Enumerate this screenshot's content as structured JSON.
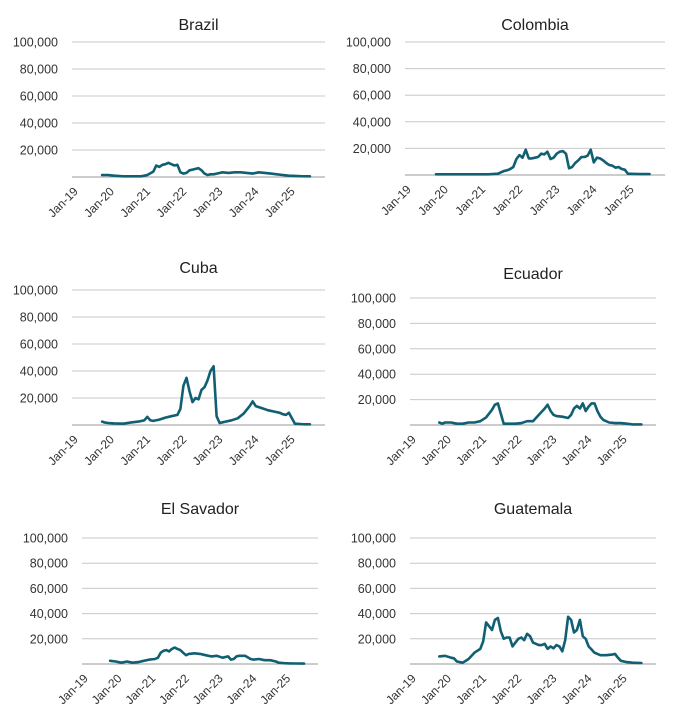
{
  "colors": {
    "line": "#115f73",
    "grid": "#c8c8c8"
  },
  "chart_data": [
    {
      "type": "line",
      "title": "Brazil",
      "ylim": [
        0,
        100000
      ],
      "yticks": [
        20000,
        40000,
        60000,
        80000,
        100000
      ],
      "ytick_labels": [
        "20,000",
        "40,000",
        "60,000",
        "80,000",
        "100,000"
      ],
      "xlim": [
        "2019-01",
        "2026-01"
      ],
      "xtick_labels": [
        "Jan-19",
        "Jan-20",
        "Jan-21",
        "Jan-22",
        "Jan-23",
        "Jan-24",
        "Jan-25"
      ],
      "grid": true,
      "series": [
        {
          "x": [
            "2019-11",
            "2020-01",
            "2020-03",
            "2020-06",
            "2020-09",
            "2020-12",
            "2021-02",
            "2021-04",
            "2021-05",
            "2021-06",
            "2021-07",
            "2021-08",
            "2021-09",
            "2021-10",
            "2021-11",
            "2021-12",
            "2022-01",
            "2022-02",
            "2022-03",
            "2022-04",
            "2022-05",
            "2022-06",
            "2022-07",
            "2022-08",
            "2022-09",
            "2022-10",
            "2022-11",
            "2022-12",
            "2023-01",
            "2023-03",
            "2023-05",
            "2023-07",
            "2023-09",
            "2023-11",
            "2024-01",
            "2024-03",
            "2024-05",
            "2024-07",
            "2024-09",
            "2024-11",
            "2025-01",
            "2025-03",
            "2025-05",
            "2025-08"
          ],
          "y": [
            1500,
            1500,
            1000,
            500,
            500,
            500,
            1500,
            4000,
            8500,
            7500,
            9000,
            9500,
            10500,
            9500,
            8500,
            9000,
            3500,
            2500,
            3000,
            5000,
            5500,
            6000,
            6500,
            5000,
            2500,
            1500,
            2000,
            2000,
            2500,
            3500,
            3000,
            3500,
            3500,
            3000,
            2500,
            3500,
            3000,
            2500,
            2000,
            1500,
            1000,
            800,
            600,
            500
          ]
        }
      ]
    },
    {
      "type": "line",
      "title": "Colombia",
      "ylim": [
        0,
        100000
      ],
      "yticks": [
        20000,
        40000,
        60000,
        80000,
        100000
      ],
      "ytick_labels": [
        "20,000",
        "40,000",
        "60,000",
        "80,000",
        "100,000"
      ],
      "xlim": [
        "2019-01",
        "2026-01"
      ],
      "xtick_labels": [
        "Jan-19",
        "Jan-20",
        "Jan-21",
        "Jan-22",
        "Jan-23",
        "Jan-24",
        "Jan-25"
      ],
      "grid": true,
      "series": [
        {
          "x": [
            "2019-11",
            "2020-01",
            "2020-04",
            "2020-07",
            "2020-10",
            "2021-01",
            "2021-04",
            "2021-07",
            "2021-09",
            "2021-10",
            "2021-11",
            "2021-12",
            "2022-01",
            "2022-02",
            "2022-03",
            "2022-04",
            "2022-05",
            "2022-06",
            "2022-07",
            "2022-08",
            "2022-09",
            "2022-10",
            "2022-11",
            "2022-12",
            "2023-01",
            "2023-02",
            "2023-03",
            "2023-04",
            "2023-05",
            "2023-06",
            "2023-07",
            "2023-08",
            "2023-09",
            "2023-10",
            "2023-11",
            "2023-12",
            "2024-01",
            "2024-02",
            "2024-03",
            "2024-04",
            "2024-05",
            "2024-06",
            "2024-07",
            "2024-08",
            "2024-09",
            "2024-10",
            "2024-11",
            "2024-12",
            "2025-01",
            "2025-03",
            "2025-05",
            "2025-08"
          ],
          "y": [
            500,
            500,
            500,
            500,
            500,
            500,
            500,
            1000,
            3000,
            3500,
            4500,
            6000,
            12000,
            15000,
            13000,
            19000,
            12500,
            12500,
            13000,
            13500,
            16000,
            15500,
            17500,
            12000,
            13000,
            16000,
            17500,
            18000,
            16000,
            5000,
            6000,
            9000,
            11000,
            13500,
            13500,
            14500,
            19000,
            9500,
            13000,
            12500,
            11000,
            9000,
            7500,
            7000,
            5500,
            6000,
            4500,
            4000,
            1000,
            800,
            700,
            700
          ]
        }
      ]
    },
    {
      "type": "line",
      "title": "Cuba",
      "ylim": [
        0,
        100000
      ],
      "yticks": [
        20000,
        40000,
        60000,
        80000,
        100000
      ],
      "ytick_labels": [
        "20,000",
        "40,000",
        "60,000",
        "80,000",
        "100,000"
      ],
      "xlim": [
        "2019-01",
        "2026-01"
      ],
      "xtick_labels": [
        "Jan-19",
        "Jan-20",
        "Jan-21",
        "Jan-22",
        "Jan-23",
        "Jan-24",
        "Jan-25"
      ],
      "grid": true,
      "series": [
        {
          "x": [
            "2019-11",
            "2019-12",
            "2020-01",
            "2020-03",
            "2020-06",
            "2020-09",
            "2020-11",
            "2021-01",
            "2021-02",
            "2021-03",
            "2021-04",
            "2021-06",
            "2021-08",
            "2021-10",
            "2021-12",
            "2022-01",
            "2022-02",
            "2022-03",
            "2022-04",
            "2022-05",
            "2022-06",
            "2022-07",
            "2022-08",
            "2022-09",
            "2022-10",
            "2022-11",
            "2022-12",
            "2023-01",
            "2023-02",
            "2023-03",
            "2023-04",
            "2023-06",
            "2023-08",
            "2023-10",
            "2023-12",
            "2024-01",
            "2024-02",
            "2024-04",
            "2024-06",
            "2024-08",
            "2024-10",
            "2024-11",
            "2024-12",
            "2025-01",
            "2025-03",
            "2025-06",
            "2025-08"
          ],
          "y": [
            2500,
            1800,
            1500,
            1200,
            1000,
            2000,
            2500,
            3500,
            6000,
            3500,
            3000,
            4000,
            5500,
            6500,
            7500,
            12000,
            29000,
            35000,
            25000,
            17000,
            20000,
            19000,
            26000,
            28000,
            33000,
            40000,
            43500,
            6500,
            1500,
            2000,
            2500,
            3500,
            5000,
            8500,
            14000,
            17500,
            14000,
            12500,
            11000,
            10000,
            9000,
            8000,
            7500,
            9000,
            1000,
            500,
            500
          ]
        }
      ]
    },
    {
      "type": "line",
      "title": "Ecuador",
      "ylim": [
        0,
        100000
      ],
      "yticks": [
        20000,
        40000,
        60000,
        80000,
        100000
      ],
      "ytick_labels": [
        "20,000",
        "40,000",
        "60,000",
        "80,000",
        "100,000"
      ],
      "xlim": [
        "2019-01",
        "2026-01"
      ],
      "xtick_labels": [
        "Jan-19",
        "Jan-20",
        "Jan-21",
        "Jan-22",
        "Jan-23",
        "Jan-24",
        "Jan-25"
      ],
      "grid": true,
      "series": [
        {
          "x": [
            "2019-11",
            "2019-12",
            "2020-01",
            "2020-03",
            "2020-05",
            "2020-07",
            "2020-09",
            "2020-11",
            "2021-01",
            "2021-03",
            "2021-05",
            "2021-06",
            "2021-07",
            "2021-08",
            "2021-09",
            "2021-10",
            "2021-11",
            "2021-12",
            "2022-01",
            "2022-03",
            "2022-05",
            "2022-07",
            "2022-09",
            "2022-11",
            "2022-12",
            "2023-01",
            "2023-02",
            "2023-03",
            "2023-05",
            "2023-07",
            "2023-08",
            "2023-09",
            "2023-10",
            "2023-11",
            "2023-12",
            "2024-01",
            "2024-02",
            "2024-03",
            "2024-04",
            "2024-05",
            "2024-06",
            "2024-07",
            "2024-09",
            "2024-11",
            "2025-01",
            "2025-03",
            "2025-05",
            "2025-08"
          ],
          "y": [
            2000,
            1000,
            2000,
            2000,
            1000,
            1000,
            2000,
            2000,
            3000,
            6000,
            12000,
            16000,
            17000,
            9000,
            1000,
            1000,
            1000,
            1000,
            1000,
            1500,
            3000,
            3000,
            8000,
            13000,
            16000,
            11000,
            8000,
            7000,
            6500,
            5500,
            8000,
            13000,
            15000,
            13000,
            17000,
            11000,
            14500,
            17000,
            17000,
            11000,
            6500,
            4000,
            2000,
            1500,
            1500,
            1000,
            500,
            500
          ]
        }
      ]
    },
    {
      "type": "line",
      "title": "El Savador",
      "ylim": [
        0,
        100000
      ],
      "yticks": [
        20000,
        40000,
        60000,
        80000,
        100000
      ],
      "ytick_labels": [
        "20,000",
        "40,000",
        "60,000",
        "80,000",
        "100,000"
      ],
      "xlim": [
        "2019-01",
        "2026-01"
      ],
      "xtick_labels": [
        "Jan-19",
        "Jan-20",
        "Jan-21",
        "Jan-22",
        "Jan-23",
        "Jan-24",
        "Jan-25"
      ],
      "grid": true,
      "series": [
        {
          "x": [
            "2019-11",
            "2020-01",
            "2020-03",
            "2020-05",
            "2020-07",
            "2020-09",
            "2020-11",
            "2021-01",
            "2021-03",
            "2021-04",
            "2021-05",
            "2021-06",
            "2021-07",
            "2021-08",
            "2021-09",
            "2021-10",
            "2021-11",
            "2021-12",
            "2022-01",
            "2022-02",
            "2022-03",
            "2022-05",
            "2022-07",
            "2022-09",
            "2022-11",
            "2023-01",
            "2023-03",
            "2023-05",
            "2023-06",
            "2023-07",
            "2023-08",
            "2023-09",
            "2023-11",
            "2024-01",
            "2024-02",
            "2024-04",
            "2024-06",
            "2024-08",
            "2024-10",
            "2024-11",
            "2025-01",
            "2025-03",
            "2025-05",
            "2025-08"
          ],
          "y": [
            2500,
            2000,
            1000,
            2000,
            1000,
            1500,
            2500,
            3500,
            4000,
            5000,
            9000,
            10500,
            11000,
            10000,
            12000,
            13000,
            12000,
            11000,
            9000,
            7000,
            8000,
            8500,
            8000,
            7000,
            6000,
            6500,
            5000,
            6000,
            3500,
            4000,
            6000,
            6500,
            6500,
            4000,
            3500,
            4000,
            3000,
            3000,
            2000,
            1000,
            600,
            500,
            400,
            300
          ]
        }
      ]
    },
    {
      "type": "line",
      "title": "Guatemala",
      "ylim": [
        0,
        100000
      ],
      "yticks": [
        20000,
        40000,
        60000,
        80000,
        100000
      ],
      "ytick_labels": [
        "20,000",
        "40,000",
        "60,000",
        "80,000",
        "100,000"
      ],
      "xlim": [
        "2019-01",
        "2026-01"
      ],
      "xtick_labels": [
        "Jan-19",
        "Jan-20",
        "Jan-21",
        "Jan-22",
        "Jan-23",
        "Jan-24",
        "Jan-25"
      ],
      "grid": true,
      "series": [
        {
          "x": [
            "2019-11",
            "2020-01",
            "2020-03",
            "2020-04",
            "2020-05",
            "2020-07",
            "2020-09",
            "2020-11",
            "2021-01",
            "2021-02",
            "2021-03",
            "2021-04",
            "2021-05",
            "2021-06",
            "2021-07",
            "2021-08",
            "2021-09",
            "2021-10",
            "2021-11",
            "2021-12",
            "2022-01",
            "2022-02",
            "2022-03",
            "2022-04",
            "2022-05",
            "2022-06",
            "2022-07",
            "2022-08",
            "2022-09",
            "2022-10",
            "2022-11",
            "2022-12",
            "2023-01",
            "2023-02",
            "2023-03",
            "2023-04",
            "2023-05",
            "2023-06",
            "2023-07",
            "2023-08",
            "2023-09",
            "2023-10",
            "2023-11",
            "2023-12",
            "2024-01",
            "2024-02",
            "2024-03",
            "2024-04",
            "2024-06",
            "2024-08",
            "2024-10",
            "2024-11",
            "2024-12",
            "2025-01",
            "2025-03",
            "2025-05",
            "2025-08"
          ],
          "y": [
            6000,
            6500,
            5000,
            4500,
            2000,
            1000,
            4000,
            9000,
            12000,
            18000,
            33000,
            30000,
            27000,
            35000,
            36500,
            26000,
            20000,
            21000,
            21000,
            14000,
            17000,
            20000,
            21000,
            19000,
            24000,
            22000,
            17000,
            16000,
            15000,
            15000,
            16000,
            12000,
            14000,
            12500,
            15000,
            14000,
            10000,
            19000,
            37500,
            35000,
            25000,
            27000,
            35000,
            22000,
            20000,
            14000,
            11500,
            9000,
            7000,
            7000,
            7500,
            8000,
            5000,
            2500,
            1500,
            1000,
            800
          ]
        }
      ]
    }
  ]
}
